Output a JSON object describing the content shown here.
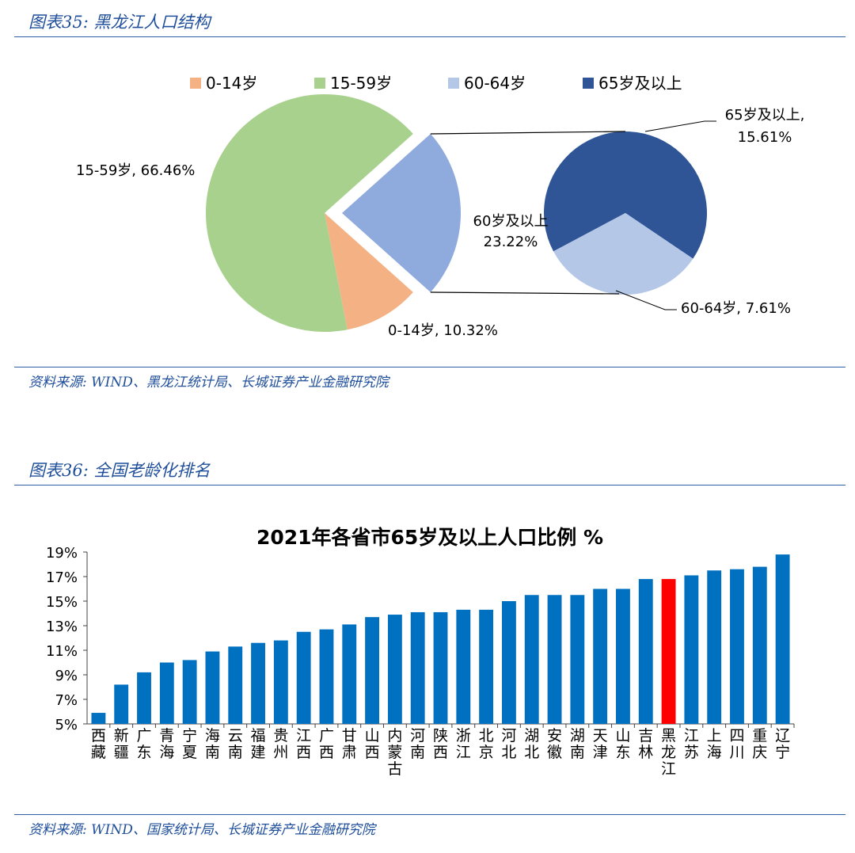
{
  "figure1": {
    "title": "图表35:  黑龙江人口结构",
    "source": "资料来源:  WIND、黑龙江统计局、长城证券产业金融研究院"
  },
  "figure2": {
    "title": "图表36:  全国老龄化排名",
    "source": "资料来源:  WIND、国家统计局、长城证券产业金融研究院"
  },
  "chart_data": [
    {
      "type": "pie",
      "title": "黑龙江人口结构",
      "legend": [
        {
          "label": "0-14岁",
          "color": "#f4b183"
        },
        {
          "label": "15-59岁",
          "color": "#a9d18e"
        },
        {
          "label": "60-64岁",
          "color": "#b4c7e7"
        },
        {
          "label": "65岁及以上",
          "color": "#2f5597"
        }
      ],
      "slices": [
        {
          "label": "15-59岁",
          "value": 66.46,
          "display": "15-59岁, 66.46%",
          "color": "#a9d18e"
        },
        {
          "label": "60岁及以上",
          "value": 23.22,
          "display": [
            "60岁及以上",
            "23.22%"
          ],
          "color": "#8faadc"
        },
        {
          "label": "0-14岁",
          "value": 10.32,
          "display": "0-14岁, 10.32%",
          "color": "#f4b183"
        }
      ],
      "sub_slices": [
        {
          "label": "65岁及以上",
          "value": 15.61,
          "display": [
            "65岁及以上,",
            "15.61%"
          ],
          "color": "#2f5597"
        },
        {
          "label": "60-64岁",
          "value": 7.61,
          "display": "60-64岁, 7.61%",
          "color": "#b4c7e7"
        }
      ]
    },
    {
      "type": "bar",
      "title": "2021年各省市65岁及以上人口比例 %",
      "categories": [
        "西藏",
        "新疆",
        "广东",
        "青海",
        "宁夏",
        "海南",
        "云南",
        "福建",
        "贵州",
        "江西",
        "广西",
        "甘肃",
        "山西",
        "内蒙古",
        "河南",
        "陕西",
        "浙江",
        "北京",
        "河北",
        "湖北",
        "安徽",
        "湖南",
        "天津",
        "山东",
        "吉林",
        "黑龙江",
        "江苏",
        "上海",
        "四川",
        "重庆",
        "辽宁"
      ],
      "values": [
        5.9,
        8.2,
        9.2,
        10.0,
        10.2,
        10.9,
        11.3,
        11.6,
        11.8,
        12.5,
        12.7,
        13.1,
        13.7,
        13.9,
        14.1,
        14.1,
        14.3,
        14.3,
        15.0,
        15.5,
        15.5,
        15.5,
        16.0,
        16.0,
        16.8,
        16.8,
        17.1,
        17.5,
        17.6,
        17.8,
        18.8
      ],
      "highlight": "黑龙江",
      "bar_color": "#0070c0",
      "highlight_color": "#ff0000",
      "ylim": [
        5,
        19
      ],
      "yticks": [
        "5%",
        "7%",
        "9%",
        "11%",
        "13%",
        "15%",
        "17%",
        "19%"
      ],
      "ytick_values": [
        5,
        7,
        9,
        11,
        13,
        15,
        17,
        19
      ]
    }
  ]
}
